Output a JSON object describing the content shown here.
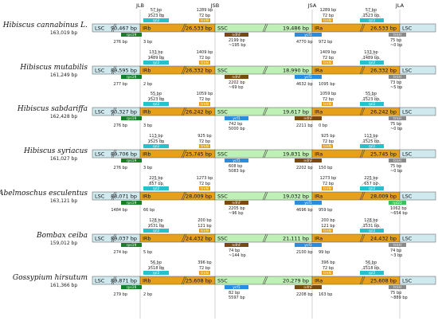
{
  "junctions": [
    "JLB",
    "JSB",
    "JSA",
    "JLA"
  ],
  "regions": {
    "lsc": "LSC",
    "irb": "IRb",
    "ssc": "SSC",
    "ira": "IRa"
  },
  "colors": {
    "lsc": "#cfe9ef",
    "ir": "#e6a019",
    "ssc": "#bff0b5",
    "rps19": "#1b7f2a",
    "rpl2": "#26c1c9",
    "trnH": "#8a8a8a",
    "ndhF": "#7a4a10",
    "ycf1": "#2a8de0",
    "rpl22": "#39c25a"
  },
  "species": [
    {
      "name": "Hibiscus cannabinus L.",
      "total": "163,019 bp",
      "lsc": "90,467 bp",
      "irb": "26,533 bp",
      "ssc": "19,486 bp",
      "ira": "26,533 bp",
      "top": [
        "57 bp",
        "1523 bp",
        "rpl2",
        "1289 bp",
        "72 bp",
        "trnN",
        "1289 bp",
        "72 bp",
        "trnN",
        "57 bp",
        "1523 bp",
        "rpl2"
      ],
      "genes": [
        "rps19",
        "ndhF",
        "ycf1",
        "trnH"
      ],
      "bottom": [
        "276 bp",
        "3 bp",
        "2199 bp",
        "~195 bp",
        "4770 bp",
        "972 bp",
        "75 bp",
        "~0 bp"
      ]
    },
    {
      "name": "Hibiscus mutabilis",
      "total": "161,249 bp",
      "lsc": "89,595 bp",
      "irb": "26,332 bp",
      "ssc": "18,990 bp",
      "ira": "26,332 bp",
      "top": [
        "133 bp",
        "1489 bp",
        "rpl2",
        "1409 bp",
        "72 bp",
        "trnN",
        "1409 bp",
        "72 bp",
        "trnN",
        "133 bp",
        "1489 bp",
        "rpl2"
      ],
      "genes": [
        "rps19",
        "ndhF",
        "ycf1",
        "trnH"
      ],
      "bottom": [
        "277 bp",
        "2 bp",
        "2202 bp",
        "~69 bp",
        "4632 bp",
        "1095 bp",
        "73 bp",
        "~5 bp"
      ]
    },
    {
      "name": "Hibiscus sabdariffa",
      "total": "162,428 bp",
      "lsc": "90,327 bp",
      "irb": "26,242 bp",
      "ssc": "19,617 bp",
      "ira": "26,242 bp",
      "top": [
        "55 bp",
        "1523 bp",
        "rpl2",
        "1059 bp",
        "72 bp",
        "trnN",
        "1059 bp",
        "72 bp",
        "trnN",
        "55 bp",
        "1523 bp",
        "rpl2"
      ],
      "genes": [
        "rps19",
        "ycf1",
        "ndhF",
        "trnH"
      ],
      "bottom": [
        "276 bp",
        "3 bp",
        "742 bp",
        "5000 bp",
        "2211 bp",
        "0 bp",
        "75 bp",
        "~0 bp"
      ]
    },
    {
      "name": "Hibiscus syriacus",
      "total": "161,027 bp",
      "lsc": "89,706 bp",
      "irb": "25,745 bp",
      "ssc": "19,831 bp",
      "ira": "25,745 bp",
      "top": [
        "113 bp",
        "1525 bp",
        "rpl2",
        "925 bp",
        "72 bp",
        "trnN",
        "925 bp",
        "72 bp",
        "trnN",
        "113 bp",
        "1525 bp",
        "rpl2"
      ],
      "genes": [
        "rps19",
        "ycf1",
        "ndhF",
        "trnH"
      ],
      "bottom": [
        "276 bp",
        "3 bp",
        "608 bp",
        "5083 bp",
        "2202 bp",
        "150 bp",
        "75 bp",
        "~0 bp"
      ]
    },
    {
      "name": "Abelmoschus esculentus",
      "total": "163,121 bp",
      "lsc": "88,071 bp",
      "irb": "28,009 bp",
      "ssc": "19,032 bp",
      "ira": "28,009 bp",
      "top": [
        "225 bp",
        "657 bp",
        "rpl2",
        "1273 bp",
        "72 bp",
        "trnN",
        "1273 bp",
        "72 bp",
        "trnN",
        "225 bp",
        "657 bp",
        "rpl2"
      ],
      "genes": [
        "rps19",
        "ndhF",
        "ycf1",
        "rpl22"
      ],
      "bottom": [
        "1484 bp",
        "66 bp",
        "2205 bp",
        "~96 bp",
        "4696 bp",
        "959 bp",
        "1062 bp",
        "~654 bp"
      ]
    },
    {
      "name": "Bombax ceiba",
      "total": "159,012 bp",
      "lsc": "89,037 bp",
      "irb": "24,432 bp",
      "ssc": "21,111 bp",
      "ira": "24,432 bp",
      "top": [
        "128 bp",
        "1531 bp",
        "rpl2",
        "200 bp",
        "121 bp",
        "trnN",
        "200 bp",
        "121 bp",
        "trnN",
        "128 bp",
        "1531 bp",
        "rpl2"
      ],
      "genes": [
        "rps19",
        "ndhF",
        "ycf1",
        "trnH"
      ],
      "bottom": [
        "274 bp",
        "5 bp",
        "74 bp",
        "~144 bp",
        "2100 bp",
        "99 bp",
        "74 bp",
        "~3 bp"
      ]
    },
    {
      "name": "Gossypium hirsutum",
      "total": "161,366 bp",
      "lsc": "89,871 bp",
      "irb": "25,608 bp",
      "ssc": "20,279 bp",
      "ira": "25,608 bp",
      "top": [
        "56 bp",
        "1518 bp",
        "rpl2",
        "396 bp",
        "72 bp",
        "trnN",
        "396 bp",
        "72 bp",
        "trnN",
        "56 bp",
        "1518 bp",
        "rpl2"
      ],
      "genes": [
        "rps19",
        "ycf1",
        "ndhF",
        "trnH"
      ],
      "bottom": [
        "279 bp",
        "2 bp",
        "82 bp",
        "5597 bp",
        "2208 bp",
        "163 bp",
        "75 bp",
        "~889 bp"
      ]
    }
  ]
}
